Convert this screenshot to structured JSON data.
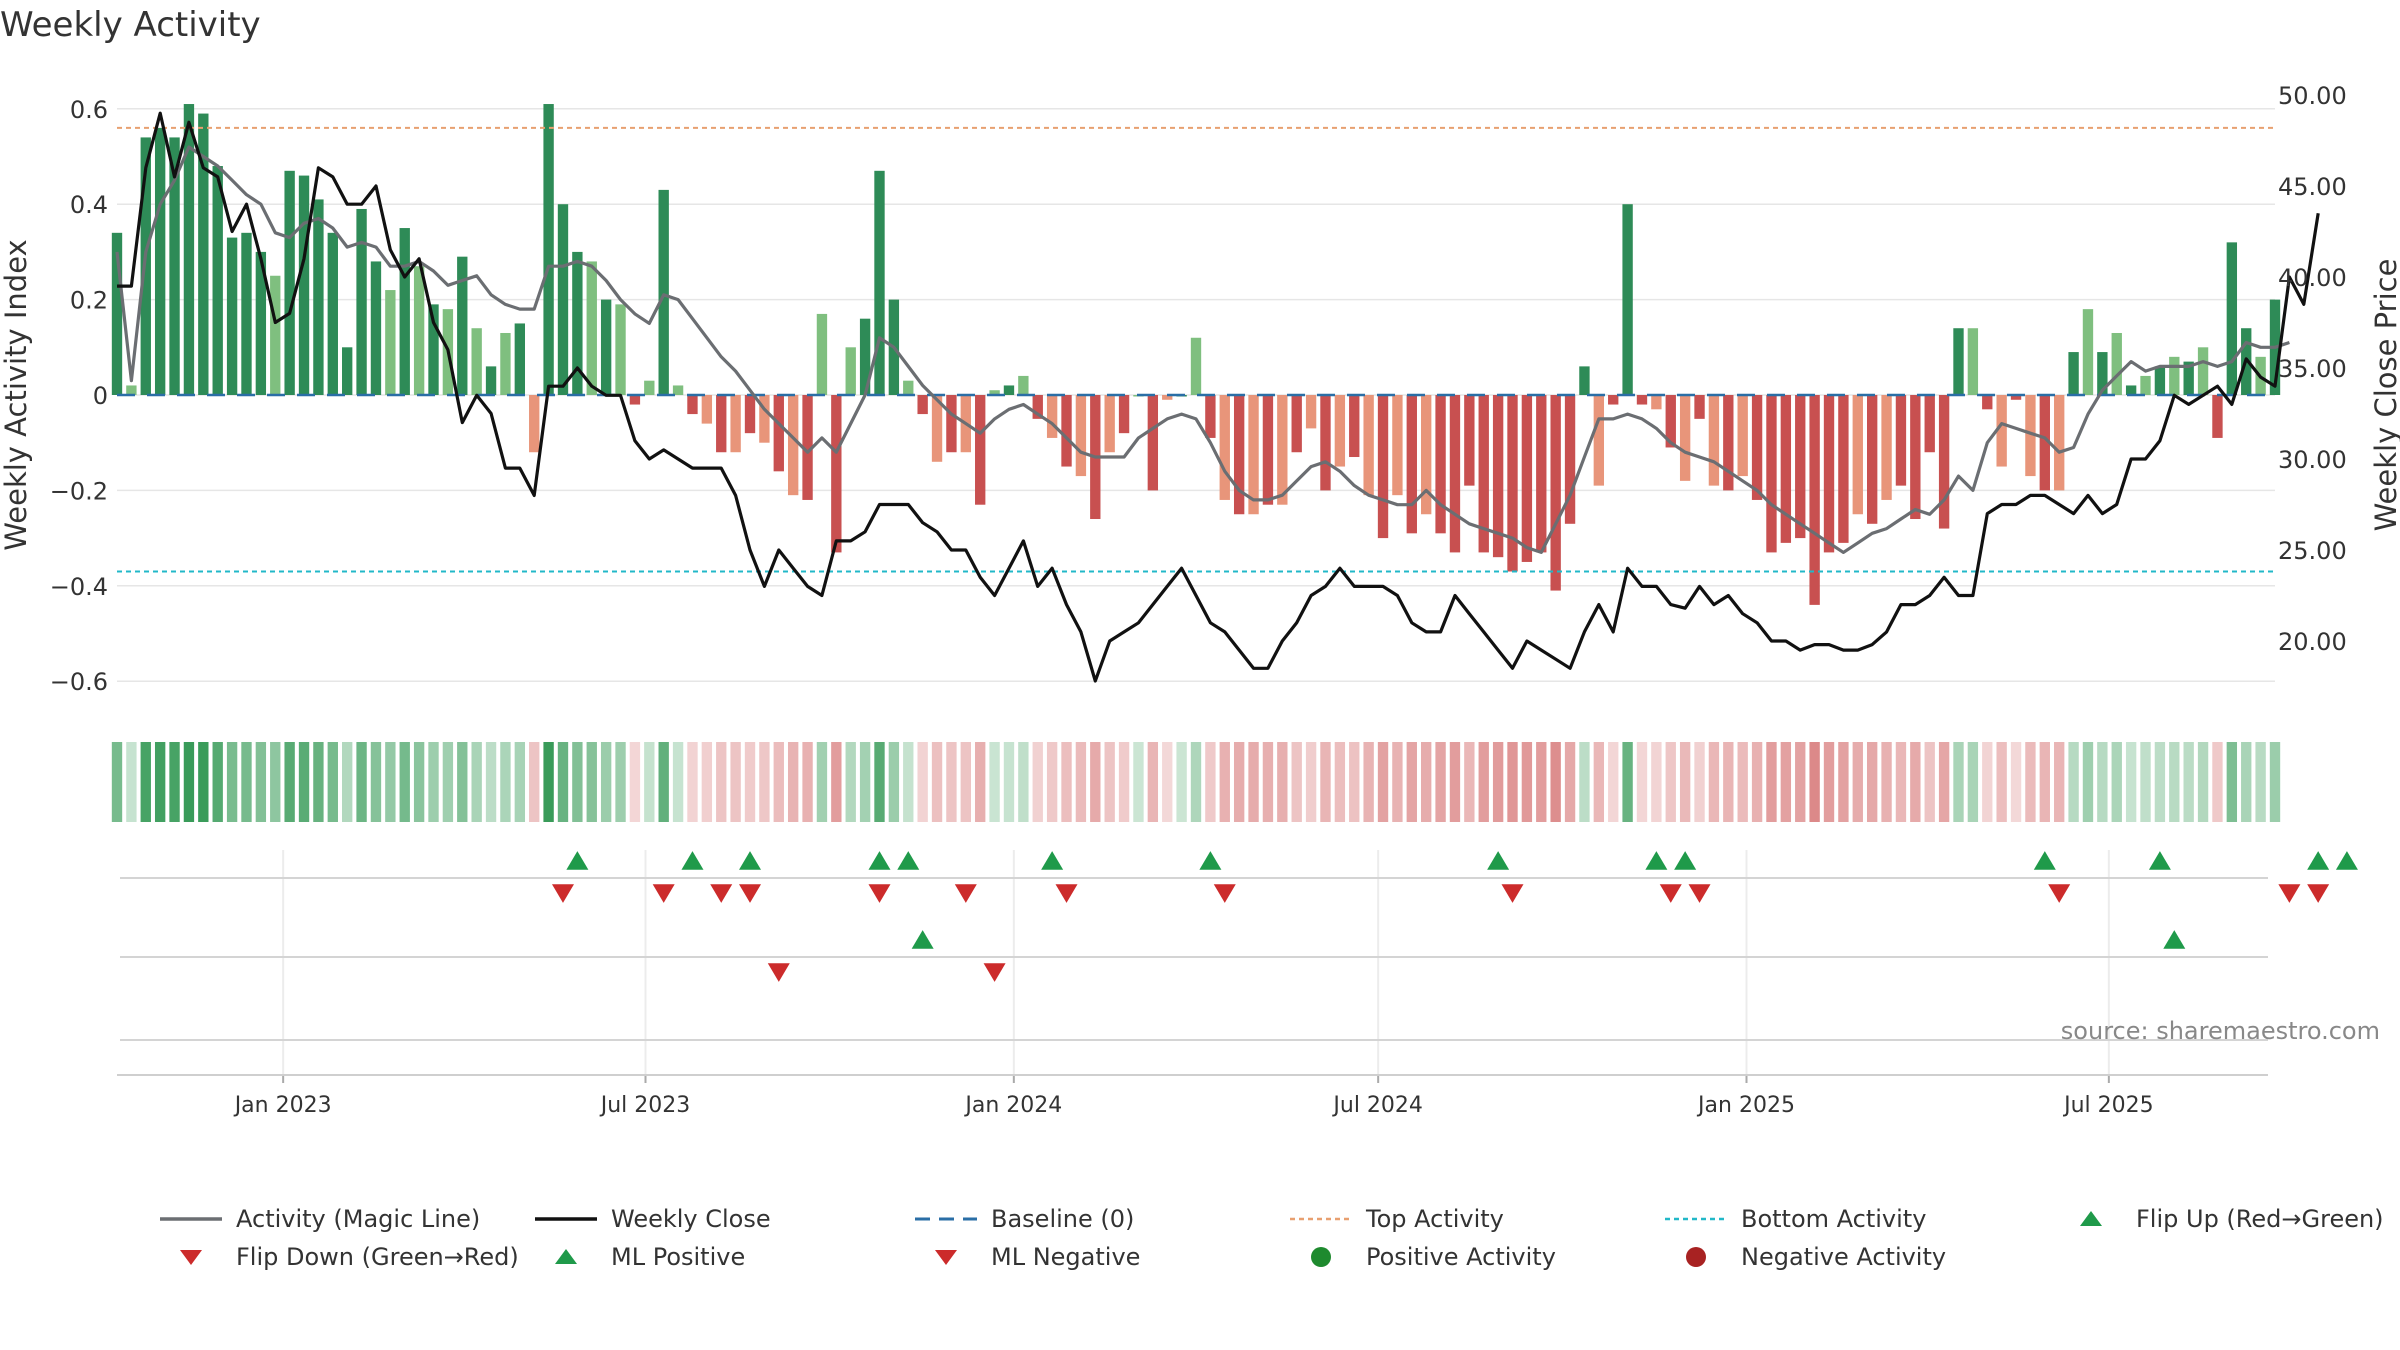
{
  "chart_data": {
    "type": "bar",
    "title": "Weekly Activity",
    "ylabel": "Weekly Activity Index",
    "y2label": "Weekly Close Price",
    "ylim": [
      -0.66,
      0.66
    ],
    "y2lim": [
      15.6,
      51.4
    ],
    "yticks": [
      0.6,
      0.4,
      0.2,
      0,
      -0.2,
      -0.4,
      -0.6
    ],
    "ytick_labels": [
      "0.6",
      "0.4",
      "0.2",
      "0",
      "−0.2",
      "−0.4",
      "−0.6"
    ],
    "y2ticks": [
      50,
      45,
      40,
      35,
      30,
      25,
      20
    ],
    "y2tick_labels": [
      "50.00",
      "45.00",
      "40.00",
      "35.00",
      "30.00",
      "25.00",
      "20.00"
    ],
    "x_start": "2022-10-10",
    "x_end": "2025-09-22",
    "xticks": [
      "2023-01-01",
      "2023-07-01",
      "2024-01-01",
      "2024-07-01",
      "2025-01-01",
      "2025-07-01"
    ],
    "xtick_labels": [
      "Jan 2023",
      "Jul 2023",
      "Jan 2024",
      "Jul 2024",
      "Jan 2025",
      "Jul 2025"
    ],
    "top_activity": 0.56,
    "bottom_activity": -0.37,
    "baseline": 0,
    "activity": [
      0.34,
      0.02,
      0.54,
      0.56,
      0.54,
      0.61,
      0.59,
      0.48,
      0.33,
      0.34,
      0.3,
      0.25,
      0.47,
      0.46,
      0.41,
      0.34,
      0.1,
      0.39,
      0.28,
      0.22,
      0.35,
      0.27,
      0.19,
      0.18,
      0.29,
      0.14,
      0.06,
      0.13,
      0.15,
      -0.12,
      0.61,
      0.4,
      0.3,
      0.28,
      0.2,
      0.19,
      -0.02,
      0.03,
      0.43,
      0.02,
      -0.04,
      -0.06,
      -0.12,
      -0.12,
      -0.08,
      -0.1,
      -0.16,
      -0.21,
      -0.22,
      0.17,
      -0.33,
      0.1,
      0.16,
      0.47,
      0.2,
      0.03,
      -0.04,
      -0.14,
      -0.12,
      -0.12,
      -0.23,
      0.01,
      0.02,
      0.04,
      -0.05,
      -0.09,
      -0.15,
      -0.17,
      -0.26,
      -0.12,
      -0.08,
      0.0,
      -0.2,
      -0.01,
      0.0,
      0.12,
      -0.09,
      -0.22,
      -0.25,
      -0.25,
      -0.23,
      -0.23,
      -0.12,
      -0.07,
      -0.2,
      -0.15,
      -0.13,
      -0.21,
      -0.3,
      -0.21,
      -0.29,
      -0.25,
      -0.29,
      -0.33,
      -0.19,
      -0.33,
      -0.34,
      -0.37,
      -0.35,
      -0.33,
      -0.41,
      -0.27,
      0.06,
      -0.19,
      -0.02,
      0.4,
      -0.02,
      -0.03,
      -0.11,
      -0.18,
      -0.05,
      -0.19,
      -0.2,
      -0.17,
      -0.22,
      -0.33,
      -0.31,
      -0.3,
      -0.44,
      -0.33,
      -0.31,
      -0.25,
      -0.27,
      -0.22,
      -0.19,
      -0.26,
      -0.12,
      -0.28,
      0.14,
      0.14,
      -0.03,
      -0.15,
      -0.01,
      -0.17,
      -0.2,
      -0.2,
      0.09,
      0.18,
      0.09,
      0.13,
      0.02,
      0.04,
      0.06,
      0.08,
      0.07,
      0.1,
      -0.09,
      0.32,
      0.14,
      0.08,
      0.2
    ],
    "close": [
      39.5,
      39.5,
      46.0,
      49.0,
      45.5,
      48.5,
      46.0,
      45.5,
      42.5,
      44.0,
      41.0,
      37.5,
      38.0,
      41.0,
      46.0,
      45.5,
      44.0,
      44.0,
      45.0,
      41.5,
      40.0,
      41.0,
      37.5,
      36.0,
      32.0,
      33.5,
      32.5,
      29.5,
      29.5,
      28.0,
      34.0,
      34.0,
      35.0,
      34.0,
      33.5,
      33.5,
      31.0,
      30.0,
      30.5,
      30.0,
      29.5,
      29.5,
      29.5,
      28.0,
      25.0,
      23.0,
      25.0,
      24.0,
      23.0,
      22.5,
      25.5,
      25.5,
      26.0,
      27.5,
      27.5,
      27.5,
      26.5,
      26.0,
      25.0,
      25.0,
      23.5,
      22.5,
      24.0,
      25.5,
      23.0,
      24.0,
      22.0,
      20.5,
      17.8,
      20.0,
      20.5,
      21.0,
      22.0,
      23.0,
      24.0,
      22.5,
      21.0,
      20.5,
      19.5,
      18.5,
      18.5,
      20.0,
      21.0,
      22.5,
      23.0,
      24.0,
      23.0,
      23.0,
      23.0,
      22.5,
      21.0,
      20.5,
      20.5,
      22.5,
      21.5,
      20.5,
      19.5,
      18.5,
      20.0,
      19.5,
      19.0,
      18.5,
      20.5,
      22.0,
      20.5,
      24.0,
      23.0,
      23.0,
      22.0,
      21.8,
      23.0,
      22.0,
      22.5,
      21.5,
      21.0,
      20.0,
      20.0,
      19.5,
      19.8,
      19.8,
      19.5,
      19.5,
      19.8,
      20.5,
      22.0,
      22.0,
      22.5,
      23.5,
      22.5,
      22.5,
      27.0,
      27.5,
      27.5,
      28.0,
      28.0,
      27.5,
      27.0,
      28.0,
      27.0,
      27.5,
      30.0,
      30.0,
      31.0,
      33.5,
      33.0,
      33.5,
      34.0,
      33.0,
      35.5,
      34.5,
      34.0,
      40.0,
      38.5,
      43.5
    ],
    "magic_line": [
      0.3,
      0.03,
      0.3,
      0.4,
      0.45,
      0.52,
      0.5,
      0.48,
      0.45,
      0.42,
      0.4,
      0.34,
      0.33,
      0.36,
      0.37,
      0.35,
      0.31,
      0.32,
      0.31,
      0.27,
      0.27,
      0.28,
      0.26,
      0.23,
      0.24,
      0.25,
      0.21,
      0.19,
      0.18,
      0.18,
      0.27,
      0.27,
      0.28,
      0.27,
      0.24,
      0.2,
      0.17,
      0.15,
      0.21,
      0.2,
      0.16,
      0.12,
      0.08,
      0.05,
      0.01,
      -0.03,
      -0.06,
      -0.09,
      -0.12,
      -0.09,
      -0.12,
      -0.06,
      0.0,
      0.12,
      0.1,
      0.06,
      0.02,
      -0.01,
      -0.04,
      -0.06,
      -0.08,
      -0.05,
      -0.03,
      -0.02,
      -0.04,
      -0.06,
      -0.09,
      -0.12,
      -0.13,
      -0.13,
      -0.13,
      -0.09,
      -0.07,
      -0.05,
      -0.04,
      -0.05,
      -0.1,
      -0.16,
      -0.2,
      -0.22,
      -0.22,
      -0.21,
      -0.18,
      -0.15,
      -0.14,
      -0.16,
      -0.19,
      -0.21,
      -0.22,
      -0.23,
      -0.23,
      -0.2,
      -0.23,
      -0.25,
      -0.27,
      -0.28,
      -0.29,
      -0.3,
      -0.32,
      -0.33,
      -0.27,
      -0.21,
      -0.13,
      -0.05,
      -0.05,
      -0.04,
      -0.05,
      -0.07,
      -0.1,
      -0.12,
      -0.13,
      -0.14,
      -0.16,
      -0.18,
      -0.2,
      -0.23,
      -0.25,
      -0.27,
      -0.29,
      -0.31,
      -0.33,
      -0.31,
      -0.29,
      -0.28,
      -0.26,
      -0.24,
      -0.25,
      -0.22,
      -0.17,
      -0.2,
      -0.1,
      -0.06,
      -0.07,
      -0.08,
      -0.09,
      -0.12,
      -0.11,
      -0.04,
      0.01,
      0.04,
      0.07,
      0.05,
      0.06,
      0.06,
      0.06,
      0.07,
      0.06,
      0.07,
      0.11,
      0.1,
      0.1,
      0.11
    ],
    "flip_up": [
      16,
      20,
      22,
      26.5,
      27.5,
      32.5,
      38,
      48,
      53.5,
      54.5,
      67,
      71,
      76.5,
      77.5
    ],
    "flip_down": [
      15.5,
      19,
      21,
      22,
      26.5,
      29.5,
      33,
      38.5,
      48.5,
      54,
      55,
      67.5,
      75.5,
      76.5
    ],
    "ml_positive": [
      28,
      71.5
    ],
    "ml_negative": [
      23,
      30.5
    ],
    "annotation": "source: sharemaestro.com",
    "legend": [
      {
        "label": "Activity (Magic Line)",
        "symbol": "line",
        "color": "#6b6e72"
      },
      {
        "label": "Weekly Close",
        "symbol": "line",
        "color": "#111111"
      },
      {
        "label": "Baseline (0)",
        "symbol": "dash",
        "color": "#2a6ea6"
      },
      {
        "label": "Top Activity",
        "symbol": "dot-line",
        "color": "#e8a070"
      },
      {
        "label": "Bottom Activity",
        "symbol": "dot-line",
        "color": "#22b8c8"
      },
      {
        "label": "Flip Up (Red→Green)",
        "symbol": "tri-up",
        "color": "#1f9a4a"
      },
      {
        "label": "Flip Down (Green→Red)",
        "symbol": "tri-down",
        "color": "#cc2b2b"
      },
      {
        "label": "ML Positive",
        "symbol": "tri-up",
        "color": "#1f9a4a"
      },
      {
        "label": "ML Negative",
        "symbol": "tri-down",
        "color": "#cc2b2b"
      },
      {
        "label": "Positive Activity",
        "symbol": "circle",
        "color": "#1e8a2e"
      },
      {
        "label": "Negative Activity",
        "symbol": "circle",
        "color": "#a82222"
      }
    ],
    "colors": {
      "pos_strong": "#2e8b57",
      "pos_weak": "#7fbf7f",
      "neg_strong": "#c85050",
      "neg_weak": "#e8957a",
      "grid": "#e6e6e6",
      "axis": "#cfcfcf"
    }
  }
}
